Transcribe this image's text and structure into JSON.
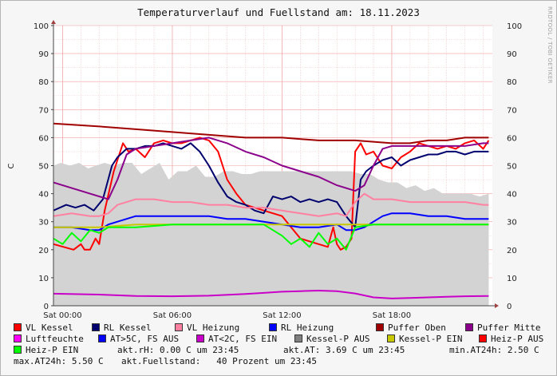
{
  "chart_data": {
    "type": "line",
    "title": "Temperaturverlauf und Fuellstand am: 18.11.2023",
    "ylabel": "C",
    "ylim": [
      0,
      100
    ],
    "y_ticks": [
      0,
      10,
      20,
      30,
      40,
      50,
      60,
      70,
      80,
      90,
      100
    ],
    "x_range_hours": [
      -0.5,
      23.5
    ],
    "x_ticks": [
      {
        "hour": 0,
        "label": "Sat 00:00"
      },
      {
        "hour": 6,
        "label": "Sat 06:00"
      },
      {
        "hour": 12,
        "label": "Sat 12:00"
      },
      {
        "hour": 18,
        "label": "Sat 18:00"
      }
    ],
    "grid": true,
    "legend_position": "bottom",
    "area": {
      "name": "Kessel-P AUS",
      "color": "#d3d3d3",
      "x": [
        -0.5,
        -0.1,
        0.4,
        0.9,
        1.4,
        1.8,
        2.3,
        2.8,
        3.3,
        3.8,
        4.3,
        4.8,
        5.3,
        5.8,
        6.3,
        6.8,
        7.3,
        7.8,
        8.3,
        8.8,
        9.3,
        9.8,
        10.3,
        10.8,
        11.3,
        11.8,
        12.3,
        12.8,
        13.3,
        13.8,
        14.3,
        14.8,
        15.3,
        15.8,
        16.3,
        16.8,
        17.3,
        17.8,
        18.3,
        18.8,
        19.3,
        19.8,
        20.3,
        20.8,
        21.3,
        21.8,
        22.3,
        22.8,
        23.3
      ],
      "values": [
        50,
        51,
        50,
        51,
        49,
        50,
        51,
        50,
        51,
        51,
        47,
        49,
        51,
        45,
        48,
        48,
        50,
        46,
        46,
        48,
        48,
        47,
        47,
        48,
        48,
        48,
        48,
        48,
        48,
        48,
        48,
        48,
        48,
        48,
        47,
        47,
        45,
        44,
        44,
        42,
        43,
        41,
        42,
        40,
        40,
        40,
        40,
        39,
        40
      ]
    },
    "series": [
      {
        "name": "VL Kessel",
        "color": "#ff0000",
        "x": [
          -0.5,
          0.6,
          1.0,
          1.2,
          1.5,
          1.8,
          2.0,
          2.3,
          2.8,
          3.3,
          3.6,
          4.0,
          4.5,
          5.0,
          5.5,
          6.0,
          6.5,
          7.0,
          7.5,
          8.0,
          8.5,
          9.0,
          9.5,
          10.0,
          10.5,
          11.0,
          11.5,
          12.0,
          12.5,
          13.0,
          13.5,
          14.0,
          14.5,
          14.8,
          15.0,
          15.2,
          15.5,
          15.8,
          16.0,
          16.3,
          16.6,
          17.0,
          17.5,
          18.0,
          18.5,
          19.0,
          19.5,
          20.0,
          20.5,
          21.0,
          21.5,
          22.0,
          22.5,
          23.0,
          23.3
        ],
        "values": [
          22,
          20,
          22,
          20,
          20,
          24,
          22,
          34,
          48,
          58,
          55,
          56,
          53,
          58,
          59,
          58,
          58,
          59,
          60,
          59,
          55,
          45,
          40,
          36,
          35,
          34,
          33,
          32,
          28,
          24,
          23,
          22,
          21,
          28,
          22,
          20,
          21,
          24,
          55,
          58,
          54,
          55,
          50,
          49,
          53,
          55,
          58,
          57,
          56,
          57,
          56,
          58,
          59,
          56,
          59
        ]
      },
      {
        "name": "RL Kessel",
        "color": "#00006e",
        "x": [
          -0.5,
          0.2,
          0.7,
          1.2,
          1.7,
          2.2,
          2.7,
          3.0,
          3.5,
          4.0,
          4.5,
          5.0,
          5.5,
          6.0,
          6.5,
          7.0,
          7.5,
          8.0,
          8.5,
          9.0,
          9.5,
          10.0,
          10.5,
          11.0,
          11.5,
          12.0,
          12.5,
          13.0,
          13.5,
          14.0,
          14.5,
          15.0,
          15.5,
          16.0,
          16.3,
          16.6,
          17.0,
          17.5,
          18.0,
          18.5,
          19.0,
          19.5,
          20.0,
          20.5,
          21.0,
          21.5,
          22.0,
          22.5,
          23.0,
          23.3
        ],
        "values": [
          34,
          36,
          35,
          36,
          34,
          38,
          50,
          53,
          56,
          56,
          57,
          57,
          58,
          57,
          56,
          58,
          55,
          50,
          44,
          39,
          37,
          36,
          34,
          33,
          39,
          38,
          39,
          37,
          38,
          37,
          38,
          37,
          32,
          28,
          45,
          48,
          50,
          52,
          53,
          50,
          52,
          53,
          54,
          54,
          55,
          55,
          54,
          55,
          55,
          55
        ]
      },
      {
        "name": "VL Heizung",
        "color": "#ff80a0",
        "x": [
          -0.5,
          0.5,
          1.5,
          2.0,
          2.5,
          3.0,
          3.5,
          4.0,
          5.0,
          6.0,
          7.0,
          8.0,
          9.0,
          10.0,
          11.0,
          12.0,
          13.0,
          14.0,
          15.0,
          15.5,
          16.0,
          16.5,
          17.0,
          18.0,
          19.0,
          20.0,
          21.0,
          22.0,
          23.0,
          23.3
        ],
        "values": [
          32,
          33,
          32,
          32,
          33,
          36,
          37,
          38,
          38,
          37,
          37,
          36,
          36,
          35,
          35,
          34,
          33,
          32,
          33,
          32,
          37,
          40,
          38,
          38,
          37,
          37,
          37,
          37,
          36,
          36
        ]
      },
      {
        "name": "RL Heizung",
        "color": "#0000ff",
        "x": [
          -0.5,
          0.5,
          1.5,
          2.0,
          2.5,
          3.0,
          3.5,
          4.0,
          5.0,
          6.0,
          7.0,
          8.0,
          9.0,
          10.0,
          11.0,
          12.0,
          13.0,
          14.0,
          15.0,
          15.5,
          16.0,
          16.5,
          17.0,
          17.5,
          18.0,
          19.0,
          20.0,
          21.0,
          22.0,
          23.0,
          23.3
        ],
        "values": [
          28,
          28,
          27,
          27,
          29,
          30,
          31,
          32,
          32,
          32,
          32,
          32,
          31,
          31,
          30,
          29,
          28,
          28,
          29,
          27,
          27,
          28,
          30,
          32,
          33,
          33,
          32,
          32,
          31,
          31,
          31
        ]
      },
      {
        "name": "Puffer Oben",
        "color": "#a00000",
        "x": [
          -0.5,
          2.0,
          4.0,
          6.0,
          8.0,
          10.0,
          12.0,
          14.0,
          16.0,
          18.0,
          19.0,
          20.0,
          21.0,
          22.0,
          23.3
        ],
        "values": [
          65,
          64,
          63,
          62,
          61,
          60,
          60,
          59,
          59,
          58,
          58,
          59,
          59,
          60,
          60
        ]
      },
      {
        "name": "Puffer Mitte",
        "color": "#8b008b",
        "x": [
          -0.5,
          0.5,
          1.5,
          2.5,
          3.0,
          3.5,
          4.0,
          5.0,
          6.0,
          7.0,
          8.0,
          9.0,
          10.0,
          11.0,
          12.0,
          13.0,
          14.0,
          15.0,
          16.0,
          16.5,
          17.0,
          17.5,
          18.0,
          19.0,
          20.0,
          21.0,
          22.0,
          23.0,
          23.3
        ],
        "values": [
          44,
          42,
          40,
          38,
          45,
          54,
          56,
          57,
          58,
          59,
          60,
          58,
          55,
          53,
          50,
          48,
          46,
          43,
          41,
          43,
          50,
          56,
          57,
          57,
          57,
          57,
          57,
          58,
          58
        ]
      },
      {
        "name": "Kessel-P EIN",
        "color": "#c8c800",
        "x": [
          -0.5,
          2.0,
          4.0,
          6.0,
          8.0,
          10.0,
          12.0,
          14.0,
          16.0,
          18.0,
          20.0,
          22.0,
          23.3
        ],
        "values": [
          28,
          28,
          29,
          29,
          29,
          29,
          29,
          29,
          29,
          29,
          29,
          29,
          29
        ]
      },
      {
        "name": "Heiz-P EIN",
        "color": "#00ff00",
        "x": [
          -0.5,
          0.0,
          0.5,
          1.0,
          1.5,
          2.0,
          2.5,
          3.0,
          4.0,
          6.0,
          8.0,
          10.0,
          11.0,
          12.0,
          12.5,
          13.0,
          13.5,
          14.0,
          14.5,
          15.0,
          15.5,
          16.0,
          17.0,
          18.0,
          20.0,
          22.0,
          23.3
        ],
        "values": [
          24,
          22,
          26,
          23,
          27,
          26,
          28,
          28,
          28,
          29,
          29,
          29,
          29,
          25,
          22,
          24,
          21,
          26,
          22,
          24,
          20,
          28,
          29,
          29,
          29,
          29,
          29
        ]
      },
      {
        "name": "Luftfeuchte",
        "color": "#c800c8",
        "x": [
          -0.5,
          2.0,
          4.0,
          6.0,
          8.0,
          10.0,
          11.0,
          12.0,
          13.0,
          14.0,
          15.0,
          16.0,
          17.0,
          18.0,
          19.0,
          20.0,
          21.0,
          22.0,
          23.3
        ],
        "values": [
          4.3,
          4.0,
          3.5,
          3.4,
          3.6,
          4.2,
          4.6,
          5.0,
          5.2,
          5.4,
          5.2,
          4.4,
          3.0,
          2.6,
          2.8,
          3.0,
          3.2,
          3.4,
          3.5
        ]
      }
    ]
  },
  "watermark": "RRDTOOL / TOBI OETIKER",
  "legend": {
    "items": [
      {
        "label": "VL Kessel",
        "color": "#ff0000"
      },
      {
        "label": "RL Kessel",
        "color": "#00006e"
      },
      {
        "label": "VL Heizung",
        "color": "#ff80a0"
      },
      {
        "label": "RL Heizung",
        "color": "#0000ff"
      },
      {
        "label": "Puffer Oben",
        "color": "#a00000"
      },
      {
        "label": "Puffer Mitte",
        "color": "#8b008b"
      },
      {
        "label": "Luftfeuchte",
        "color": "#ff00ff"
      },
      {
        "label": "AT>5C, FS AUS",
        "color": "#0000ff"
      },
      {
        "label": "AT<2C, FS EIN",
        "color": "#c800c8"
      },
      {
        "label": "Kessel-P AUS",
        "color": "#808080"
      },
      {
        "label": "Kessel-P EIN",
        "color": "#c8c800"
      },
      {
        "label": "Heiz-P AUS",
        "color": "#ff0000"
      },
      {
        "label": "Heiz-P EIN",
        "color": "#00ff00"
      }
    ],
    "stats": {
      "rh": "akt.rH: 0.00 C um 23:45",
      "at": "akt.AT: 3.69 C um 23:45",
      "min_at": "min.AT24h: 2.50 C",
      "max_at": "max.AT24h: 5.50 C",
      "fuellstand": "akt.Fuellstand:   40 Prozent um 23:45"
    }
  }
}
